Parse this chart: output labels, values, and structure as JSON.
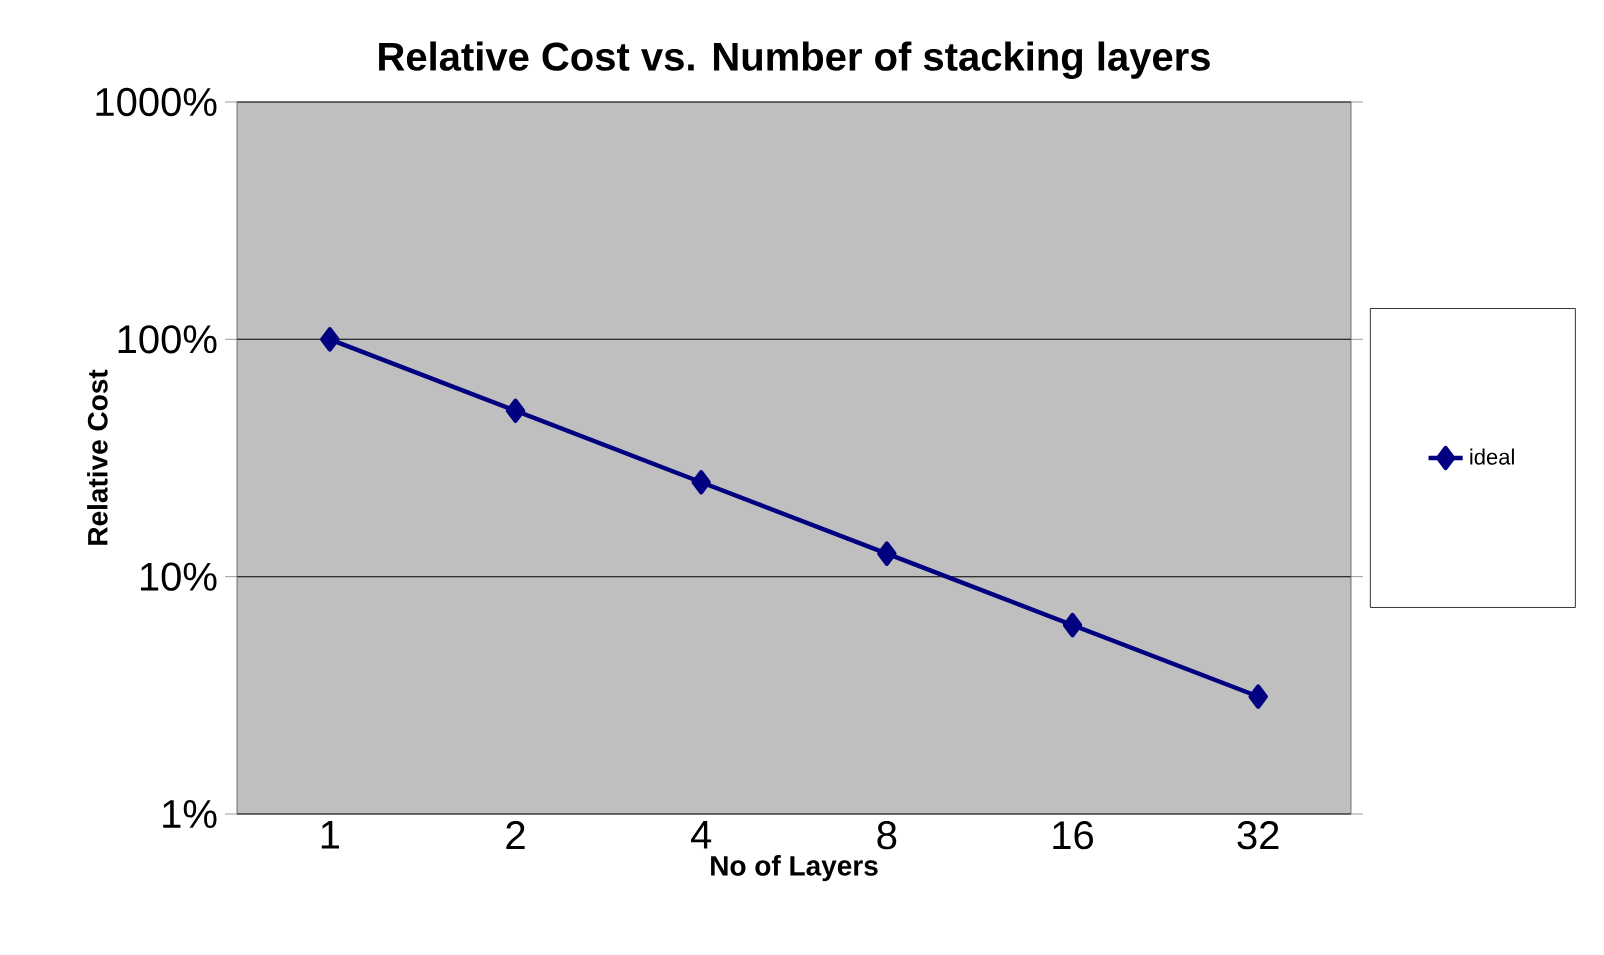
{
  "chart_data": {
    "type": "line",
    "title": "Relative Cost vs. Number of stacking layers",
    "xlabel": "No of Layers",
    "ylabel": "Relative Cost",
    "categories": [
      "1",
      "2",
      "4",
      "8",
      "16",
      "32"
    ],
    "series": [
      {
        "name": "ideal",
        "color": "#000080",
        "values": [
          100,
          50,
          25,
          12.5,
          6.25,
          3.125
        ]
      }
    ],
    "log": "y",
    "ylim": [
      1,
      1000
    ],
    "yticks": [
      {
        "value": 1,
        "label": "1%"
      },
      {
        "value": 10,
        "label": "10%"
      },
      {
        "value": 100,
        "label": "100%"
      },
      {
        "value": 1000,
        "label": "1000%"
      }
    ],
    "grid": "y",
    "legend": "right",
    "marker": "diamond",
    "line_style": "solid"
  }
}
